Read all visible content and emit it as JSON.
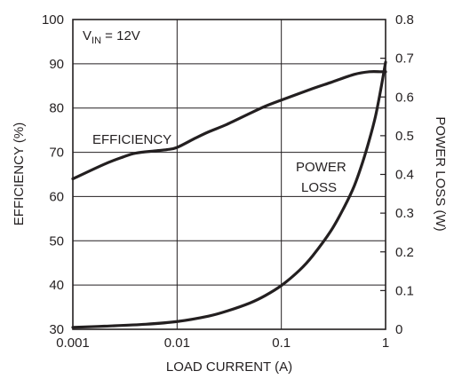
{
  "chart_data": {
    "type": "line",
    "title": "",
    "annotation_vin": {
      "main": "V",
      "sub": "IN",
      "rest": " = 12V"
    },
    "xlabel": "LOAD CURRENT (A)",
    "ylabel_left": "EFFICIENCY (%)",
    "ylabel_right": "POWER LOSS (W)",
    "xscale": "log",
    "xlim": [
      0.001,
      1
    ],
    "ylim_left": [
      30,
      100
    ],
    "ylim_right": [
      0,
      0.8
    ],
    "grid": true,
    "legend": "none",
    "x_ticks": [
      "0.001",
      "0.01",
      "0.1",
      "1"
    ],
    "y_left_ticks": [
      "30",
      "40",
      "50",
      "60",
      "70",
      "80",
      "90",
      "100"
    ],
    "y_right_ticks": [
      "0",
      "0.1",
      "0.2",
      "0.3",
      "0.4",
      "0.5",
      "0.6",
      "0.7",
      "0.8"
    ],
    "series": [
      {
        "name": "EFFICIENCY",
        "axis": "left",
        "x": [
          0.001,
          0.002,
          0.003,
          0.004,
          0.006,
          0.008,
          0.01,
          0.015,
          0.02,
          0.03,
          0.05,
          0.07,
          0.1,
          0.2,
          0.3,
          0.5,
          0.7,
          0.9,
          1.0
        ],
        "y": [
          64,
          67.3,
          68.9,
          69.8,
          70.3,
          70.6,
          71.1,
          73.2,
          74.6,
          76.3,
          78.8,
          80.4,
          81.8,
          84.4,
          85.8,
          87.6,
          88.2,
          88.2,
          88.2
        ]
      },
      {
        "name": "POWER LOSS",
        "axis": "right",
        "x": [
          0.001,
          0.002,
          0.005,
          0.01,
          0.02,
          0.03,
          0.05,
          0.07,
          0.1,
          0.15,
          0.2,
          0.3,
          0.4,
          0.5,
          0.6,
          0.7,
          0.8,
          0.9,
          1.0
        ],
        "y": [
          0.005,
          0.008,
          0.013,
          0.02,
          0.034,
          0.047,
          0.068,
          0.087,
          0.113,
          0.153,
          0.19,
          0.255,
          0.315,
          0.37,
          0.43,
          0.49,
          0.55,
          0.62,
          0.69
        ]
      }
    ],
    "line_color": "#231f20"
  }
}
